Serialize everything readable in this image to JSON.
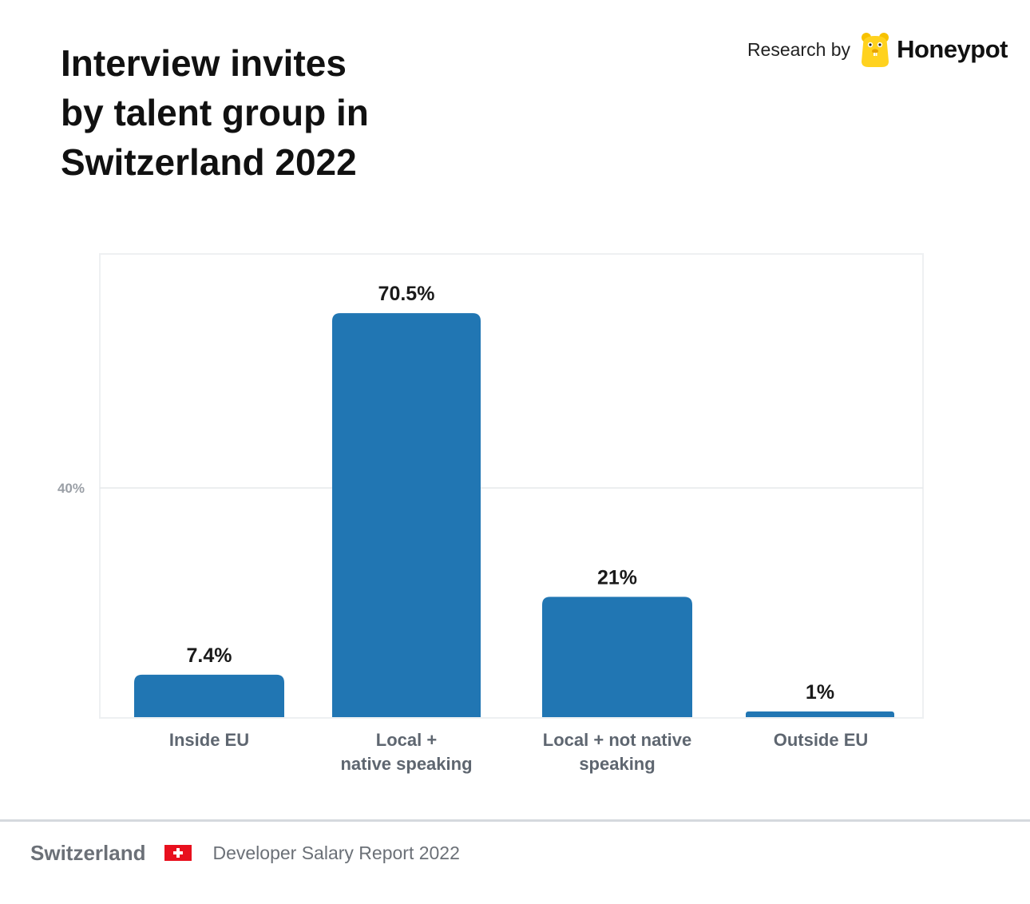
{
  "title_lines": [
    "Interview invites",
    "by talent group in",
    "Switzerland 2022"
  ],
  "brand": {
    "prefix": "Research by",
    "name": "Honeypot",
    "logo_icon": "honeypot-bear-icon"
  },
  "footer": {
    "country": "Switzerland",
    "flag_icon": "swiss-flag-icon",
    "report": "Developer Salary Report 2022"
  },
  "colors": {
    "bar": "#2176b3",
    "grid": "#e6e8eb",
    "tick": "#9a9fa6",
    "value_label": "#1a1a1a",
    "category_label": "#5e6670"
  },
  "chart_data": {
    "type": "bar",
    "categories": [
      "Inside EU",
      "Local +\nnative speaking",
      "Local + not native\nspeaking",
      "Outside EU"
    ],
    "values": [
      7.4,
      70.5,
      21,
      1
    ],
    "value_labels": [
      "7.4%",
      "70.5%",
      "21%",
      "1%"
    ],
    "yticks": [
      40
    ],
    "ytick_labels": [
      "40%"
    ],
    "ylim": [
      0,
      80
    ],
    "grid": true,
    "xlabel": "",
    "ylabel": ""
  }
}
